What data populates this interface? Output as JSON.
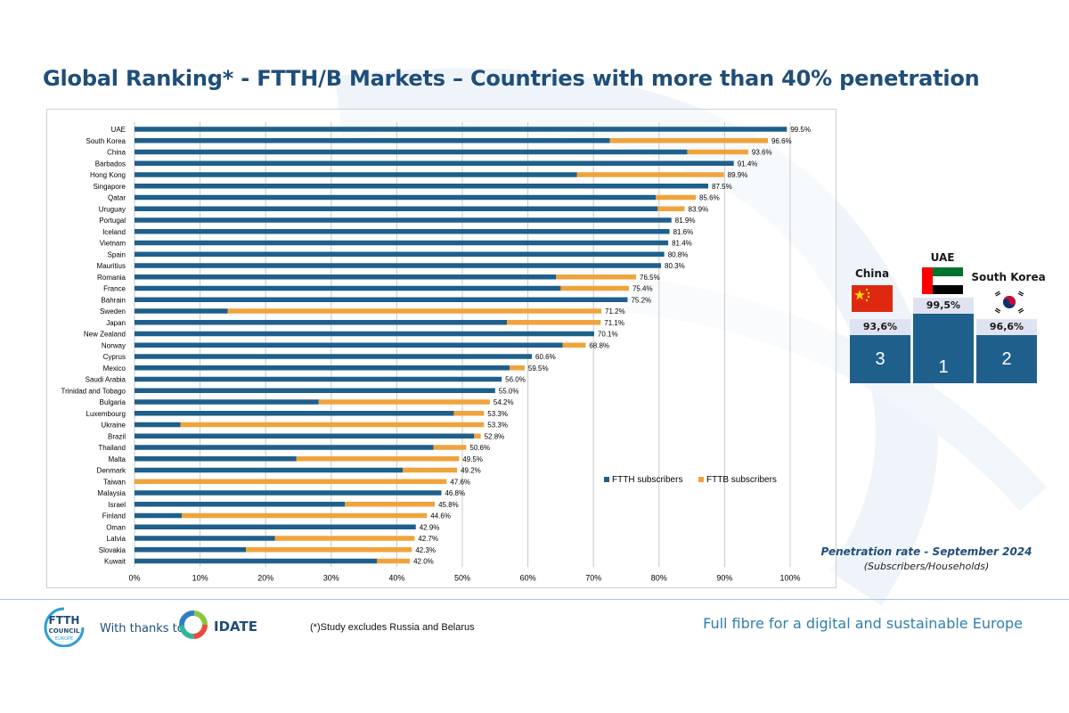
{
  "page": {
    "title": "Global Ranking* - FTTH/B Markets – Countries with more than 40% penetration",
    "caption_main": "Penetration rate - September 2024",
    "caption_sub": "(Subscribers/Households)",
    "footnote": "(*)Study excludes Russia and Belarus",
    "thanks": "With thanks to",
    "idate": "IDATE",
    "tagline": "Full fibre for a digital and sustainable Europe",
    "ftth_logo": {
      "line1": "FTTH",
      "line2": "COUNCIL",
      "line3": "EUROPE"
    }
  },
  "colors": {
    "ftth": "#1f5f8b",
    "fttb": "#f0a33c",
    "title": "#1f4e79",
    "podium": "#1f5f8b"
  },
  "podium": {
    "first": {
      "name": "UAE",
      "value": "99,5%",
      "rank": "1"
    },
    "second": {
      "name": "South Korea",
      "value": "96,6%",
      "rank": "2"
    },
    "third": {
      "name": "China",
      "value": "93,6%",
      "rank": "3"
    }
  },
  "chart_data": {
    "type": "bar",
    "orientation": "horizontal",
    "stacked": true,
    "xlim": [
      0,
      100
    ],
    "x_ticks": [
      "0%",
      "10%",
      "20%",
      "30%",
      "40%",
      "50%",
      "60%",
      "70%",
      "80%",
      "90%",
      "100%"
    ],
    "grid": true,
    "legend_position": "bottom-right",
    "categories": [
      "UAE",
      "South Korea",
      "China",
      "Barbados",
      "Hong Kong",
      "Singapore",
      "Qatar",
      "Uruguay",
      "Portugal",
      "Iceland",
      "Vietnam",
      "Spain",
      "Mauritius",
      "Romania",
      "France",
      "Bahrain",
      "Sweden",
      "Japan",
      "New Zealand",
      "Norway",
      "Cyprus",
      "Mexico",
      "Saudi Arabia",
      "Trinidad and Tobago",
      "Bulgaria",
      "Luxembourg",
      "Ukraine",
      "Brazil",
      "Thailand",
      "Malta",
      "Denmark",
      "Taiwan",
      "Malaysia",
      "Israel",
      "Finland",
      "Oman",
      "Latvia",
      "Slovakia",
      "Kuwait"
    ],
    "series": [
      {
        "name": "FTTH subscribers",
        "values": [
          99.5,
          72.5,
          84.3,
          91.4,
          67.5,
          87.5,
          79.5,
          79.8,
          81.9,
          81.6,
          81.4,
          80.8,
          80.3,
          64.3,
          65.0,
          75.2,
          14.2,
          56.8,
          70.1,
          65.3,
          60.6,
          57.2,
          56.0,
          55.0,
          28.1,
          48.7,
          7.0,
          51.8,
          45.6,
          24.7,
          40.9,
          0,
          46.8,
          32.1,
          7.2,
          42.9,
          21.4,
          17.0,
          37.0
        ]
      },
      {
        "name": "FTTB subscribers",
        "values": [
          0,
          24.1,
          9.3,
          0,
          22.4,
          0,
          6.1,
          4.1,
          0,
          0,
          0,
          0,
          0,
          12.2,
          10.4,
          0,
          57.0,
          14.3,
          0,
          3.5,
          0,
          2.3,
          0,
          0,
          26.1,
          4.6,
          46.3,
          1.0,
          5.0,
          24.8,
          8.3,
          47.6,
          0,
          13.7,
          37.4,
          0,
          21.3,
          25.3,
          5.0
        ]
      }
    ],
    "labels": [
      "99.5%",
      "96.6%",
      "93.6%",
      "91.4%",
      "89.9%",
      "87.5%",
      "85.6%",
      "83.9%",
      "81.9%",
      "81.6%",
      "81.4%",
      "80.8%",
      "80.3%",
      "76.5%",
      "75.4%",
      "75.2%",
      "71.2%",
      "71.1%",
      "70.1%",
      "68.8%",
      "60.6%",
      "59.5%",
      "56.0%",
      "55.0%",
      "54.2%",
      "53.3%",
      "53.3%",
      "52.8%",
      "50.6%",
      "49.5%",
      "49.2%",
      "47.6%",
      "46.8%",
      "45.8%",
      "44.6%",
      "42.9%",
      "42.7%",
      "42.3%",
      "42.0%"
    ]
  }
}
